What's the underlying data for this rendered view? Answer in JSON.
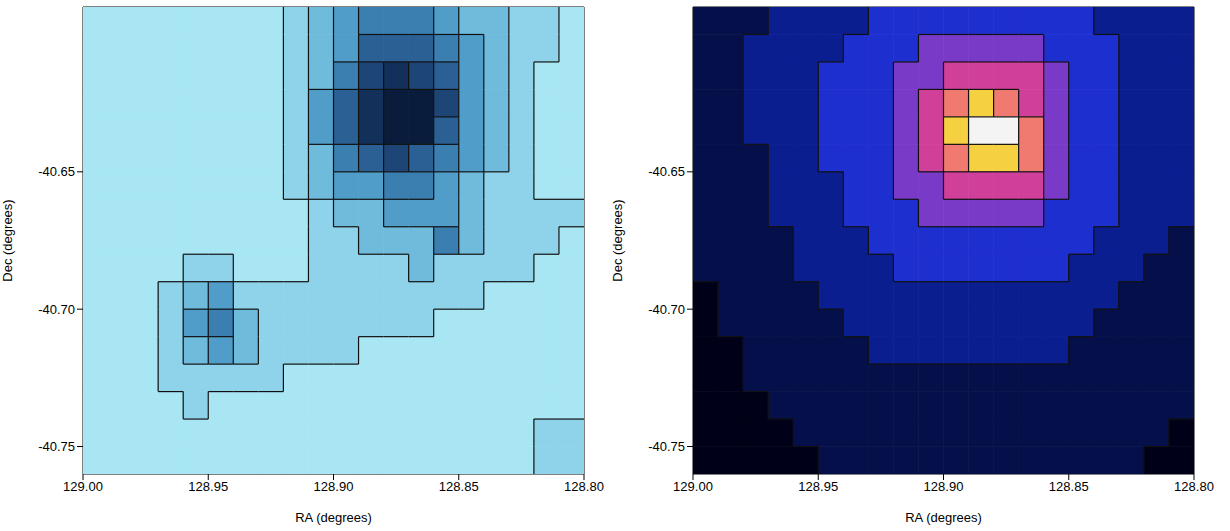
{
  "chart_data": [
    {
      "type": "heatmap",
      "x_label": "RA (degrees)",
      "y_label": "Dec (degrees)",
      "xlim": [
        129.0,
        128.8
      ],
      "ylim": [
        -40.76,
        -40.59
      ],
      "xticks": [
        {
          "value": 129.0,
          "label": "129.00"
        },
        128.95,
        {
          "value": 128.9,
          "label": "128.90"
        },
        128.85,
        {
          "value": 128.8,
          "label": "128.80"
        }
      ],
      "yticks": [
        -40.65,
        {
          "value": -40.7,
          "label": "-40.70"
        },
        -40.75
      ],
      "clim": [
        0,
        8
      ],
      "cell_x": [
        128.995,
        128.985,
        128.975,
        128.965,
        128.955,
        128.945,
        128.935,
        128.925,
        128.915,
        128.905,
        128.895,
        128.885,
        128.875,
        128.865,
        128.855,
        128.845,
        128.835,
        128.825,
        128.815,
        128.805
      ],
      "cell_y": [
        -40.595,
        -40.605,
        -40.615,
        -40.625,
        -40.635,
        -40.645,
        -40.655,
        -40.665,
        -40.675,
        -40.685,
        -40.695,
        -40.705,
        -40.715,
        -40.725,
        -40.735,
        -40.745,
        -40.755
      ],
      "cells": [
        [
          0,
          0,
          0,
          0,
          0,
          0,
          0,
          0,
          1,
          2,
          3,
          4,
          4,
          4,
          3,
          2,
          2,
          1,
          1,
          0
        ],
        [
          0,
          0,
          0,
          0,
          0,
          0,
          0,
          0,
          1,
          2,
          3,
          5,
          5,
          5,
          4,
          3,
          2,
          1,
          1,
          0
        ],
        [
          0,
          0,
          0,
          0,
          0,
          0,
          0,
          0,
          1,
          2,
          4,
          6,
          7,
          6,
          5,
          3,
          2,
          1,
          0,
          0
        ],
        [
          0,
          0,
          0,
          0,
          0,
          0,
          0,
          0,
          1,
          3,
          5,
          7,
          8,
          8,
          6,
          3,
          2,
          1,
          0,
          0
        ],
        [
          0,
          0,
          0,
          0,
          0,
          0,
          0,
          0,
          1,
          3,
          5,
          7,
          8,
          8,
          5,
          3,
          2,
          1,
          0,
          0
        ],
        [
          0,
          0,
          0,
          0,
          0,
          0,
          0,
          0,
          1,
          2,
          4,
          5,
          6,
          5,
          4,
          3,
          2,
          1,
          0,
          0
        ],
        [
          0,
          0,
          0,
          0,
          0,
          0,
          0,
          0,
          1,
          2,
          3,
          3,
          4,
          4,
          3,
          2,
          1,
          1,
          0,
          0
        ],
        [
          0,
          0,
          0,
          0,
          0,
          0,
          0,
          0,
          0,
          1,
          2,
          2,
          3,
          3,
          3,
          2,
          1,
          1,
          1,
          1
        ],
        [
          0,
          0,
          0,
          0,
          0,
          0,
          0,
          0,
          0,
          1,
          1,
          2,
          2,
          2,
          4,
          2,
          1,
          1,
          1,
          0
        ],
        [
          0,
          0,
          0,
          0,
          1,
          1,
          0,
          0,
          0,
          1,
          1,
          1,
          1,
          2,
          1,
          1,
          1,
          1,
          0,
          0
        ],
        [
          0,
          0,
          0,
          1,
          2,
          3,
          1,
          1,
          1,
          1,
          1,
          1,
          1,
          1,
          1,
          1,
          0,
          0,
          0,
          0
        ],
        [
          0,
          0,
          0,
          1,
          3,
          4,
          2,
          1,
          1,
          1,
          1,
          1,
          1,
          1,
          0,
          0,
          0,
          0,
          0,
          0
        ],
        [
          0,
          0,
          0,
          1,
          2,
          3,
          2,
          1,
          1,
          1,
          1,
          0,
          0,
          0,
          0,
          0,
          0,
          0,
          0,
          0
        ],
        [
          0,
          0,
          0,
          1,
          1,
          1,
          1,
          1,
          0,
          0,
          0,
          0,
          0,
          0,
          0,
          0,
          0,
          0,
          0,
          0
        ],
        [
          0,
          0,
          0,
          0,
          1,
          0,
          0,
          0,
          0,
          0,
          0,
          0,
          0,
          0,
          0,
          0,
          0,
          0,
          0,
          0
        ],
        [
          0,
          0,
          0,
          0,
          0,
          0,
          0,
          0,
          0,
          0,
          0,
          0,
          0,
          0,
          0,
          0,
          0,
          0,
          1,
          1
        ],
        [
          0,
          0,
          0,
          0,
          0,
          0,
          0,
          0,
          0,
          0,
          0,
          0,
          0,
          0,
          0,
          0,
          0,
          0,
          1,
          1
        ]
      ]
    },
    {
      "type": "heatmap",
      "x_label": "RA (degrees)",
      "y_label": "Dec (degrees)",
      "xlim": [
        129.0,
        128.8
      ],
      "ylim": [
        -40.76,
        -40.59
      ],
      "xticks": [
        {
          "value": 129.0,
          "label": "129.00"
        },
        128.95,
        {
          "value": 128.9,
          "label": "128.90"
        },
        128.85,
        {
          "value": 128.8,
          "label": "128.80"
        }
      ],
      "yticks": [
        -40.65,
        {
          "value": -40.7,
          "label": "-40.70"
        },
        -40.75
      ],
      "clim": [
        0,
        8
      ],
      "cell_x": [
        128.995,
        128.985,
        128.975,
        128.965,
        128.955,
        128.945,
        128.935,
        128.925,
        128.915,
        128.905,
        128.895,
        128.885,
        128.875,
        128.865,
        128.855,
        128.845,
        128.835,
        128.825,
        128.815,
        128.805
      ],
      "cell_y": [
        -40.595,
        -40.605,
        -40.615,
        -40.625,
        -40.635,
        -40.645,
        -40.655,
        -40.665,
        -40.675,
        -40.685,
        -40.695,
        -40.705,
        -40.715,
        -40.725,
        -40.735,
        -40.745,
        -40.755
      ],
      "cells": [
        [
          1,
          1,
          1,
          2,
          2,
          2,
          2,
          3,
          3,
          3,
          3,
          3,
          3,
          3,
          3,
          3,
          2,
          2,
          2,
          2
        ],
        [
          1,
          1,
          2,
          2,
          2,
          2,
          3,
          3,
          3,
          4,
          4,
          4,
          4,
          4,
          3,
          3,
          3,
          2,
          2,
          2
        ],
        [
          1,
          1,
          2,
          2,
          2,
          3,
          3,
          3,
          4,
          4,
          5,
          5,
          5,
          5,
          4,
          3,
          3,
          2,
          2,
          2
        ],
        [
          1,
          1,
          2,
          2,
          2,
          3,
          3,
          3,
          4,
          5,
          6,
          7,
          6,
          5,
          4,
          3,
          3,
          2,
          2,
          2
        ],
        [
          1,
          1,
          2,
          2,
          2,
          3,
          3,
          3,
          4,
          5,
          7,
          8,
          8,
          6,
          4,
          3,
          3,
          2,
          2,
          2
        ],
        [
          1,
          1,
          1,
          2,
          2,
          3,
          3,
          3,
          4,
          5,
          6,
          7,
          7,
          6,
          4,
          3,
          3,
          2,
          2,
          2
        ],
        [
          1,
          1,
          1,
          2,
          2,
          2,
          3,
          3,
          4,
          4,
          5,
          5,
          5,
          5,
          4,
          3,
          3,
          2,
          2,
          2
        ],
        [
          1,
          1,
          1,
          2,
          2,
          2,
          3,
          3,
          3,
          4,
          4,
          4,
          4,
          4,
          3,
          3,
          3,
          2,
          2,
          2
        ],
        [
          1,
          1,
          1,
          1,
          2,
          2,
          2,
          3,
          3,
          3,
          3,
          3,
          3,
          3,
          3,
          3,
          2,
          2,
          2,
          1
        ],
        [
          1,
          1,
          1,
          1,
          2,
          2,
          2,
          2,
          3,
          3,
          3,
          3,
          3,
          3,
          3,
          2,
          2,
          2,
          1,
          1
        ],
        [
          0,
          1,
          1,
          1,
          1,
          2,
          2,
          2,
          2,
          2,
          2,
          2,
          2,
          2,
          2,
          2,
          2,
          1,
          1,
          1
        ],
        [
          0,
          1,
          1,
          1,
          1,
          1,
          2,
          2,
          2,
          2,
          2,
          2,
          2,
          2,
          2,
          2,
          1,
          1,
          1,
          1
        ],
        [
          0,
          0,
          1,
          1,
          1,
          1,
          1,
          2,
          2,
          2,
          2,
          2,
          2,
          2,
          2,
          1,
          1,
          1,
          1,
          1
        ],
        [
          0,
          0,
          1,
          1,
          1,
          1,
          1,
          1,
          1,
          1,
          1,
          1,
          1,
          1,
          1,
          1,
          1,
          1,
          1,
          1
        ],
        [
          0,
          0,
          0,
          1,
          1,
          1,
          1,
          1,
          1,
          1,
          1,
          1,
          1,
          1,
          1,
          1,
          1,
          1,
          1,
          1
        ],
        [
          0,
          0,
          0,
          0,
          1,
          1,
          1,
          1,
          1,
          1,
          1,
          1,
          1,
          1,
          1,
          1,
          1,
          1,
          1,
          0
        ],
        [
          0,
          0,
          0,
          0,
          0,
          1,
          1,
          1,
          1,
          1,
          1,
          1,
          1,
          1,
          1,
          1,
          1,
          1,
          0,
          0
        ]
      ]
    }
  ]
}
